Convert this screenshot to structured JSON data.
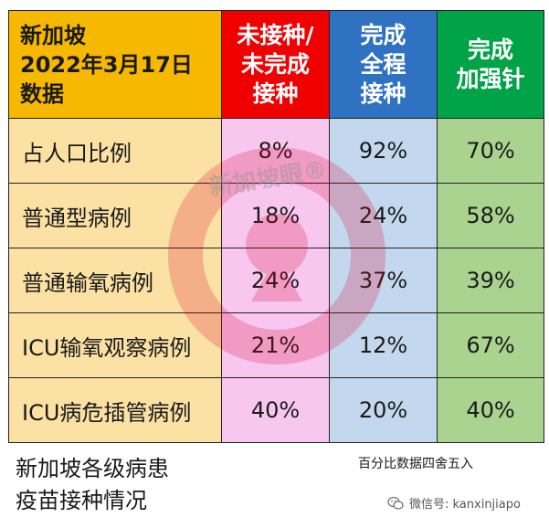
{
  "table": {
    "corner_lines": [
      "新加坡",
      "2022年3月17日",
      "数据"
    ],
    "headers": [
      {
        "lines": [
          "未接种/",
          "未完成",
          "接种"
        ],
        "color": "#f00000"
      },
      {
        "lines": [
          "完成",
          "全程",
          "接种"
        ],
        "color": "#2f72c2"
      },
      {
        "lines": [
          "完成",
          "加强针"
        ],
        "color": "#00a347"
      }
    ],
    "rows": [
      {
        "label": "占人口比例",
        "values": [
          "8%",
          "92%",
          "70%"
        ]
      },
      {
        "label": "普通型病例",
        "values": [
          "18%",
          "24%",
          "58%"
        ]
      },
      {
        "label": "普通输氧病例",
        "values": [
          "24%",
          "37%",
          "39%"
        ]
      },
      {
        "label": "ICU输氧观察病例",
        "values": [
          "21%",
          "12%",
          "67%"
        ]
      },
      {
        "label": "ICU病危插管病例",
        "values": [
          "40%",
          "20%",
          "40%"
        ]
      }
    ]
  },
  "chart_data": {
    "type": "table",
    "title": "新加坡 2022年3月17日 数据",
    "columns": [
      "未接种/未完成接种",
      "完成全程接种",
      "完成加强针"
    ],
    "rows": [
      "占人口比例",
      "普通型病例",
      "普通输氧病例",
      "ICU输氧观察病例",
      "ICU病危插管病例"
    ],
    "values": [
      [
        8,
        92,
        70
      ],
      [
        18,
        24,
        58
      ],
      [
        24,
        37,
        39
      ],
      [
        21,
        12,
        67
      ],
      [
        40,
        20,
        40
      ]
    ],
    "unit": "%"
  },
  "caption_lines": [
    "新加坡各级病患",
    "疫苗接种情况"
  ],
  "note": "百分比数据四舍五入",
  "watermark": {
    "text": "新加坡眼",
    "mark": "®"
  },
  "wechat": {
    "icon": "wechat-icon",
    "text": "微信号: kanxinjiapo"
  }
}
